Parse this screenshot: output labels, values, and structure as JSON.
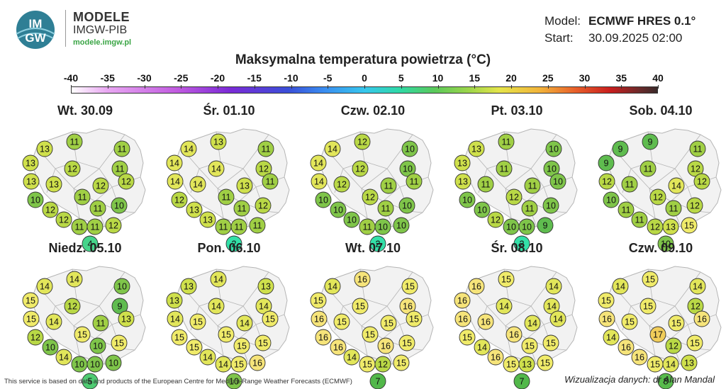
{
  "header": {
    "logo_text_top": "IM",
    "logo_text_bottom": "GW",
    "brand_title": "MODELE",
    "brand_subtitle": "IMGW-PIB",
    "brand_url": "modele.imgw.pl",
    "model_label": "Model:",
    "model_value": "ECMWF HRES 0.1°",
    "start_label": "Start:",
    "start_value": "30.09.2025 02:00"
  },
  "title": "Maksymalna temperatura powietrza (°C)",
  "scale": {
    "ticks": [
      "-40",
      "-35",
      "-30",
      "-25",
      "-20",
      "-15",
      "-10",
      "-5",
      "0",
      "5",
      "10",
      "15",
      "20",
      "25",
      "30",
      "35",
      "40"
    ]
  },
  "colors": {
    "t2": "#33e0a8",
    "t4": "#45d48a",
    "t5": "#4fcb72",
    "t7": "#52b84a",
    "t8": "#58bb4c",
    "t9": "#5fbc4f",
    "t10": "#7fc54a",
    "t11": "#a0cf45",
    "t12": "#b9d846",
    "t13": "#cfe04c",
    "t14": "#e2e65a",
    "t15": "#f0eb6a",
    "t16": "#f6e47a",
    "t17": "#f1cd5a",
    "map_fill": "#f2f2f2",
    "map_border": "#b5b5b5"
  },
  "maps": [
    {
      "label": "Wt. 30.09",
      "values": [
        13,
        11,
        11,
        13,
        12,
        11,
        12,
        13,
        13,
        12,
        10,
        11,
        12,
        10,
        11,
        12,
        11,
        11,
        12,
        4
      ]
    },
    {
      "label": "Śr. 01.10",
      "values": [
        14,
        13,
        11,
        14,
        14,
        12,
        11,
        14,
        14,
        13,
        12,
        11,
        13,
        12,
        11,
        13,
        11,
        11,
        11,
        2
      ]
    },
    {
      "label": "Czw. 02.10",
      "values": [
        14,
        12,
        10,
        14,
        12,
        10,
        11,
        14,
        12,
        11,
        10,
        12,
        10,
        10,
        11,
        10,
        11,
        10,
        10,
        2
      ]
    },
    {
      "label": "Pt. 03.10",
      "values": [
        13,
        11,
        10,
        13,
        11,
        10,
        10,
        13,
        11,
        11,
        10,
        12,
        10,
        10,
        11,
        12,
        10,
        10,
        9,
        2
      ]
    },
    {
      "label": "Sob. 04.10",
      "values": [
        9,
        9,
        11,
        9,
        11,
        12,
        12,
        12,
        11,
        14,
        10,
        12,
        11,
        12,
        11,
        11,
        12,
        13,
        15,
        10
      ]
    },
    {
      "label": "Niedz. 05.10",
      "values": [
        14,
        14,
        10,
        15,
        12,
        9,
        13,
        15,
        14,
        11,
        12,
        15,
        10,
        15,
        10,
        14,
        10,
        10,
        10,
        5
      ]
    },
    {
      "label": "Pon. 06.10",
      "values": [
        13,
        14,
        13,
        13,
        14,
        14,
        15,
        14,
        15,
        14,
        15,
        15,
        15,
        15,
        15,
        14,
        14,
        15,
        16,
        10
      ]
    },
    {
      "label": "Wt. 07.10",
      "values": [
        14,
        16,
        15,
        15,
        15,
        16,
        15,
        16,
        15,
        15,
        16,
        15,
        16,
        15,
        16,
        14,
        15,
        12,
        15,
        7
      ]
    },
    {
      "label": "Śr. 08.10",
      "values": [
        16,
        15,
        14,
        16,
        14,
        14,
        14,
        16,
        16,
        14,
        15,
        16,
        14,
        15,
        15,
        16,
        15,
        13,
        15,
        7
      ]
    },
    {
      "label": "Czw. 09.10",
      "values": [
        14,
        15,
        14,
        15,
        15,
        12,
        16,
        16,
        15,
        15,
        14,
        17,
        16,
        15,
        12,
        16,
        15,
        14,
        13,
        8
      ]
    }
  ],
  "footer": {
    "notice": "This service is based on data and products of the European Centre for Medium-Range Weather Forecasts (ECMWF)",
    "credit": "Wizualizacja danych: dr Alan Mandal"
  }
}
